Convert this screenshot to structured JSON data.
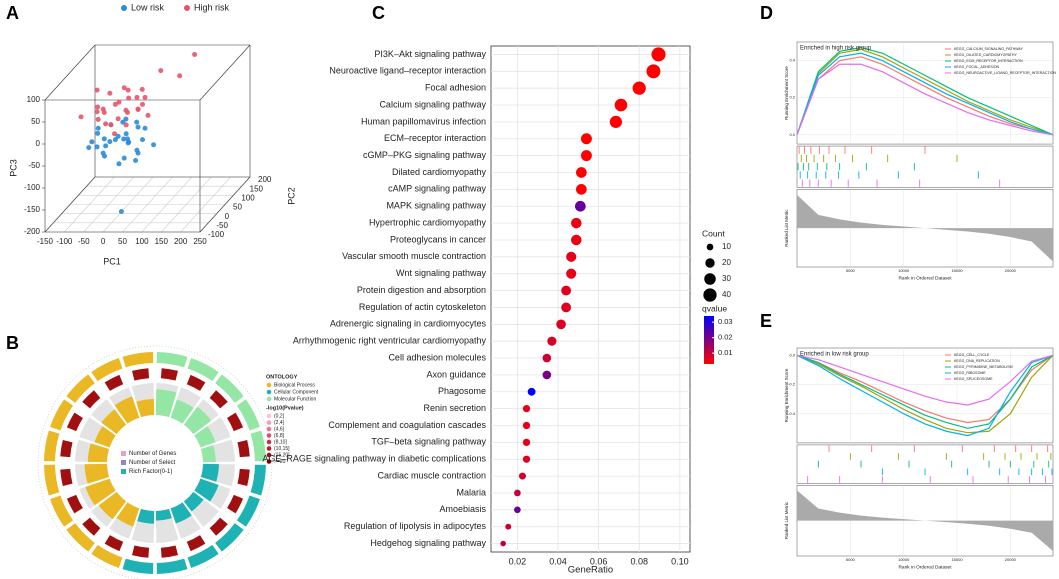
{
  "panel_labels": [
    "A",
    "B",
    "C",
    "D",
    "E"
  ],
  "chart_data": [
    {
      "type": "scatter3d",
      "x_label": "PC1",
      "y_label": "PC2",
      "z_label": "PC3",
      "xlim": [
        -150,
        250
      ],
      "ylim": [
        -100,
        200
      ],
      "zlim": [
        -200,
        100
      ],
      "xticks": [
        -150,
        -100,
        -50,
        0,
        50,
        100,
        150,
        200,
        250
      ],
      "yticks": [
        -100,
        -50,
        0,
        50,
        100,
        150,
        200
      ],
      "zticks": [
        -200,
        -150,
        -100,
        -50,
        0,
        50,
        100
      ],
      "series": [
        {
          "name": "Low risk",
          "color": "#2a8bd6",
          "x": [
            -40,
            -20,
            0,
            10,
            -60,
            20,
            -30,
            30,
            0,
            -50,
            40,
            -10,
            15,
            -70,
            50,
            -25,
            5,
            -45,
            25,
            60,
            -15,
            35,
            -35,
            10,
            -5,
            45,
            -55,
            20,
            70,
            -80,
            30
          ],
          "y": [
            0,
            20,
            -10,
            30,
            10,
            0,
            -30,
            40,
            50,
            -20,
            10,
            60,
            -40,
            30,
            20,
            5,
            15,
            45,
            -20,
            -30,
            -50,
            70,
            -10,
            -5,
            35,
            -10,
            -40,
            55,
            40,
            0,
            -60
          ],
          "z": [
            -30,
            -40,
            -20,
            -50,
            -10,
            -30,
            -50,
            -20,
            -60,
            -40,
            -60,
            -10,
            -70,
            -30,
            -40,
            0,
            -80,
            -55,
            -10,
            -50,
            -25,
            -35,
            -65,
            10,
            -45,
            -75,
            -20,
            -15,
            -60,
            -50,
            -170
          ]
        },
        {
          "name": "High risk",
          "color": "#e7546a",
          "x": [
            -40,
            -20,
            0,
            10,
            -60,
            20,
            -30,
            30,
            0,
            -50,
            40,
            -10,
            15,
            -70,
            50,
            -25,
            5,
            -45,
            25,
            60,
            -15,
            35,
            80,
            120,
            -100,
            150,
            -5,
            45,
            90,
            -80
          ],
          "y": [
            0,
            20,
            -10,
            30,
            10,
            0,
            -30,
            40,
            50,
            -20,
            10,
            60,
            -40,
            30,
            20,
            5,
            15,
            45,
            -20,
            -30,
            -50,
            70,
            60,
            80,
            0,
            100,
            -20,
            30,
            -40,
            50
          ],
          "z": [
            30,
            40,
            20,
            50,
            10,
            30,
            50,
            20,
            60,
            40,
            60,
            10,
            70,
            30,
            40,
            0,
            80,
            55,
            10,
            50,
            25,
            35,
            100,
            80,
            20,
            120,
            -10,
            70,
            40,
            60
          ]
        }
      ]
    },
    {
      "type": "circos",
      "legend_title": "ONTOLOGY",
      "categories": [
        {
          "name": "Biological Process",
          "color": "#e9b824"
        },
        {
          "name": "Cellular Component",
          "color": "#1fb2b4"
        },
        {
          "name": "Molecular Function",
          "color": "#93e6a3"
        }
      ],
      "pvalue_title": "-log10(Pvalue)",
      "pvalue_bins": [
        {
          "name": "(0,2]",
          "color": "#f6c6d6"
        },
        {
          "name": "(2,4]",
          "color": "#f0a0b4"
        },
        {
          "name": "(4,6]",
          "color": "#e87890"
        },
        {
          "name": "(6,8]",
          "color": "#dc5068"
        },
        {
          "name": "(8,10]",
          "color": "#cc3040"
        },
        {
          "name": "(10,15]",
          "color": "#b81c24"
        },
        {
          "name": "(15,20]",
          "color": "#a01010"
        },
        {
          "name": ">=20",
          "color": "#800000"
        }
      ],
      "inner_legend": [
        {
          "name": "Number of Genes",
          "color": "#e8a0c8"
        },
        {
          "name": "Number of Select",
          "color": "#9a80d0"
        },
        {
          "name": "Rich Factor(0-1)",
          "color": "#1fb2b4"
        }
      ],
      "ontology": [
        2,
        2,
        2,
        2,
        2,
        1,
        1,
        1,
        1,
        1,
        1,
        0,
        0,
        0,
        0,
        0,
        0,
        0,
        0,
        0
      ],
      "rich_factor": [
        0.8,
        0.6,
        0.7,
        0.5,
        0.4,
        0.5,
        0.6,
        0.4,
        0.5,
        0.3,
        0.4,
        0.6,
        0.7,
        0.8,
        0.7,
        0.6,
        0.5,
        0.6,
        0.7,
        0.5
      ]
    },
    {
      "type": "dot",
      "x_label": "GeneRatio",
      "xlim": [
        0.007,
        0.105
      ],
      "xticks": [
        {
          "value": 0.02,
          "label": "0.02"
        },
        {
          "value": 0.04,
          "label": "0.04"
        },
        {
          "value": 0.06,
          "label": "0.06"
        },
        {
          "value": 0.08,
          "label": "0.08"
        },
        {
          "value": 0.1,
          "label": "0.10"
        }
      ],
      "categories": [
        "PI3K–Akt signaling pathway",
        "Neuroactive ligand–receptor interaction",
        "Focal adhesion",
        "Calcium signaling pathway",
        "Human papillomavirus infection",
        "ECM–receptor interaction",
        "cGMP–PKG signaling pathway",
        "Dilated cardiomyopathy",
        "cAMP signaling pathway",
        "MAPK signaling pathway",
        "Hypertrophic cardiomyopathy",
        "Proteoglycans in cancer",
        "Vascular smooth muscle contraction",
        "Wnt signaling pathway",
        "Protein digestion and absorption",
        "Regulation of actin cytoskeleton",
        "Adrenergic signaling in cardiomyocytes",
        "Arrhythmogenic right ventricular cardiomyopathy",
        "Cell adhesion molecules",
        "Axon guidance",
        "Phagosome",
        "Renin secretion",
        "Complement and coagulation cascades",
        "TGF–beta signaling pathway",
        "AGE–RAGE signaling pathway in diabetic complications",
        "Cardiac muscle contraction",
        "Malaria",
        "Amoebiasis",
        "Regulation of lipolysis in adipocytes",
        "Hedgehog signaling pathway"
      ],
      "values": [
        0.0895,
        0.087,
        0.08,
        0.071,
        0.0685,
        0.054,
        0.054,
        0.0515,
        0.0515,
        0.051,
        0.049,
        0.049,
        0.0465,
        0.0465,
        0.044,
        0.044,
        0.0415,
        0.037,
        0.0345,
        0.0345,
        0.027,
        0.0245,
        0.0245,
        0.0245,
        0.0245,
        0.0225,
        0.02,
        0.02,
        0.0155,
        0.013
      ],
      "counts": [
        45,
        44,
        40,
        36,
        34,
        27,
        27,
        26,
        26,
        26,
        25,
        25,
        23,
        23,
        22,
        22,
        21,
        19,
        17,
        17,
        14,
        12,
        12,
        12,
        12,
        11,
        10,
        10,
        8,
        7
      ],
      "qvalues": [
        0.003,
        0.003,
        0.003,
        0.003,
        0.003,
        0.003,
        0.003,
        0.003,
        0.003,
        0.022,
        0.005,
        0.005,
        0.006,
        0.006,
        0.007,
        0.007,
        0.007,
        0.008,
        0.009,
        0.019,
        0.034,
        0.006,
        0.006,
        0.006,
        0.007,
        0.008,
        0.01,
        0.021,
        0.009,
        0.011
      ],
      "size_title": "Count",
      "size_legend": [
        10,
        20,
        30,
        40
      ],
      "color_title": "qvalue",
      "qlim": [
        0.003,
        0.034
      ],
      "qticks": [
        0.01,
        0.02,
        0.03
      ],
      "low_color": "#ff0000",
      "high_color": "#0000ff",
      "grid": true
    },
    {
      "type": "gsea",
      "title": "Enriched in high risk group",
      "y_label": "Running Enrichment Score",
      "metric_label": "Ranked List Metric",
      "x_label": "Rank in Ordered Dataset",
      "xlim": [
        0,
        24000
      ],
      "xticks": [
        5000,
        10000,
        15000,
        20000
      ],
      "ylim": [
        -0.05,
        0.5
      ],
      "yticks": [
        {
          "value": 0,
          "label": "0.0"
        },
        0.2,
        0.4
      ],
      "x": [
        0,
        2000,
        4000,
        6000,
        8000,
        10000,
        12000,
        14000,
        16000,
        18000,
        20000,
        22000,
        24000
      ],
      "series": [
        {
          "name": "KEGG_CALCIUM_SIGNALING_PATHWAY",
          "color": "#f8766d",
          "values": [
            0,
            0.3,
            0.4,
            0.42,
            0.38,
            0.32,
            0.26,
            0.2,
            0.15,
            0.1,
            0.06,
            0.03,
            0
          ],
          "hits": [
            200,
            700,
            1300,
            2100,
            3000,
            4500,
            7000,
            12000
          ]
        },
        {
          "name": "KEGG_DILATED_CARDIOMYOPATHY",
          "color": "#a3a500",
          "values": [
            0,
            0.33,
            0.44,
            0.46,
            0.42,
            0.36,
            0.3,
            0.24,
            0.18,
            0.13,
            0.08,
            0.04,
            0
          ],
          "hits": [
            400,
            900,
            1600,
            2500,
            3600,
            5200,
            8500,
            15000
          ]
        },
        {
          "name": "KEGG_ECM_RECEPTOR_INTERACTION",
          "color": "#00bf7d",
          "values": [
            0,
            0.34,
            0.45,
            0.47,
            0.44,
            0.38,
            0.32,
            0.26,
            0.2,
            0.15,
            0.1,
            0.05,
            0
          ],
          "hits": [
            100,
            600,
            1100,
            1900,
            2800,
            4000,
            6500,
            11000
          ]
        },
        {
          "name": "KEGG_FOCAL_ADHESION",
          "color": "#00b0f6",
          "values": [
            0,
            0.32,
            0.42,
            0.44,
            0.4,
            0.34,
            0.28,
            0.22,
            0.17,
            0.12,
            0.07,
            0.03,
            0
          ],
          "hits": [
            300,
            1000,
            1800,
            2700,
            3900,
            5800,
            9500,
            17000
          ]
        },
        {
          "name": "KEGG_NEUROACTIVE_LIGAND_RECEPTOR_INTERACTION",
          "color": "#e76bf3",
          "values": [
            0,
            0.3,
            0.38,
            0.38,
            0.34,
            0.28,
            0.22,
            0.17,
            0.12,
            0.08,
            0.05,
            0.02,
            0
          ],
          "hits": [
            500,
            1200,
            2000,
            3200,
            4800,
            7500,
            11500,
            19000
          ]
        }
      ],
      "metric": [
        3,
        1.2,
        0.8,
        0.5,
        0.3,
        0.15,
        0,
        -0.15,
        -0.3,
        -0.5,
        -0.8,
        -1.2,
        -3
      ],
      "metric_lim": [
        -3.5,
        3.5
      ]
    },
    {
      "type": "gsea",
      "title": "Enriched in low risk group",
      "y_label": "Running Enrichment Score",
      "metric_label": "Ranked List Metric",
      "x_label": "Rank in Ordered Dataset",
      "xlim": [
        0,
        24000
      ],
      "xticks": [
        5000,
        10000,
        15000,
        20000
      ],
      "ylim": [
        -0.6,
        0.05
      ],
      "yticks": [
        -0.4,
        -0.2,
        {
          "value": 0,
          "label": "0.0"
        }
      ],
      "x": [
        0,
        2000,
        4000,
        6000,
        8000,
        10000,
        12000,
        14000,
        16000,
        18000,
        20000,
        22000,
        24000
      ],
      "series": [
        {
          "name": "KEGG_CELL_CYCLE",
          "color": "#f8766d",
          "values": [
            0,
            -0.05,
            -0.12,
            -0.18,
            -0.25,
            -0.32,
            -0.38,
            -0.43,
            -0.46,
            -0.44,
            -0.3,
            -0.1,
            0
          ],
          "hits": [
            3000,
            7000,
            11000,
            15500,
            18500,
            20500,
            22000,
            23500
          ]
        },
        {
          "name": "KEGG_DNA_REPLICATION",
          "color": "#a3a500",
          "values": [
            0,
            -0.06,
            -0.14,
            -0.21,
            -0.29,
            -0.37,
            -0.44,
            -0.5,
            -0.53,
            -0.52,
            -0.4,
            -0.15,
            0
          ],
          "hits": [
            5000,
            9500,
            14000,
            17500,
            19500,
            21000,
            22500,
            23800
          ]
        },
        {
          "name": "KEGG_PYRIMIDINE_METABOLISM",
          "color": "#00bf7d",
          "values": [
            0,
            -0.05,
            -0.13,
            -0.2,
            -0.27,
            -0.34,
            -0.41,
            -0.46,
            -0.5,
            -0.47,
            -0.3,
            -0.08,
            0
          ],
          "hits": [
            2000,
            6000,
            10500,
            14500,
            18000,
            20000,
            22200,
            23600
          ]
        },
        {
          "name": "KEGG_RIBOSOME",
          "color": "#00b0f6",
          "values": [
            0,
            -0.07,
            -0.16,
            -0.24,
            -0.32,
            -0.4,
            -0.47,
            -0.52,
            -0.55,
            -0.5,
            -0.25,
            -0.05,
            0
          ],
          "hits": [
            8000,
            12000,
            16000,
            19000,
            20800,
            22000,
            23000,
            23900
          ]
        },
        {
          "name": "KEGG_SPLICEOSOME",
          "color": "#e76bf3",
          "values": [
            0,
            -0.03,
            -0.08,
            -0.13,
            -0.18,
            -0.23,
            -0.28,
            -0.32,
            -0.34,
            -0.3,
            -0.18,
            -0.04,
            0
          ],
          "hits": [
            1000,
            4000,
            8000,
            12500,
            16500,
            19800,
            21800,
            23300
          ]
        }
      ],
      "metric": [
        3,
        1.2,
        0.8,
        0.5,
        0.3,
        0.15,
        0,
        -0.15,
        -0.3,
        -0.5,
        -0.8,
        -1.2,
        -3
      ],
      "metric_lim": [
        -3.5,
        3.5
      ]
    }
  ]
}
